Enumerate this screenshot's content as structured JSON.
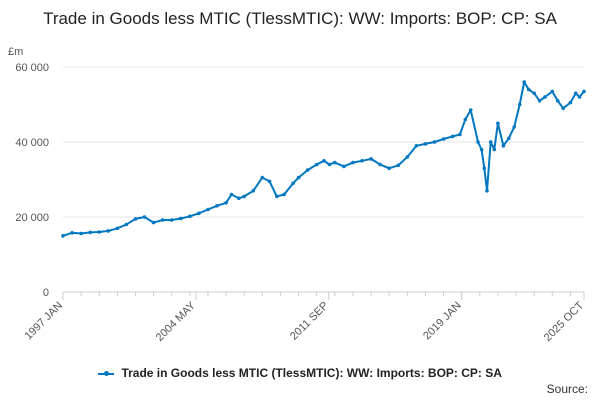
{
  "unit_label": "£m",
  "source_label": "Source:",
  "colors": {
    "series": "#0077c1",
    "grid": "#e6e6e6",
    "axis": "#cccccc"
  },
  "chart_data": {
    "type": "line",
    "title": "Trade in Goods less MTIC (TlessMTIC): WW: Imports: BOP: CP: SA",
    "ylabel": "£m",
    "ylim": [
      0,
      60000
    ],
    "y_ticks": [
      {
        "value": 0,
        "label": "0"
      },
      {
        "value": 20000,
        "label": "20 000"
      },
      {
        "value": 40000,
        "label": "40 000"
      },
      {
        "value": 60000,
        "label": "60 000"
      }
    ],
    "xlim": [
      1997.0,
      2025.75
    ],
    "x_ticks": [
      {
        "value": 1997.0,
        "label": "1997 JAN"
      },
      {
        "value": 2004.333,
        "label": "2004 MAY"
      },
      {
        "value": 2011.667,
        "label": "2011 SEP"
      },
      {
        "value": 2019.0,
        "label": "2019 JAN"
      },
      {
        "value": 2025.75,
        "label": "2025 OCT"
      }
    ],
    "series": [
      {
        "name": "Trade in Goods less MTIC (TlessMTIC): WW: Imports: BOP: CP: SA",
        "x": [
          1997.0,
          1997.5,
          1998.0,
          1998.5,
          1999.0,
          1999.5,
          2000.0,
          2000.5,
          2001.0,
          2001.5,
          2002.0,
          2002.5,
          2003.0,
          2003.5,
          2004.0,
          2004.5,
          2005.0,
          2005.5,
          2006.0,
          2006.3,
          2006.7,
          2007.0,
          2007.5,
          2008.0,
          2008.4,
          2008.8,
          2009.2,
          2009.7,
          2010.0,
          2010.5,
          2011.0,
          2011.4,
          2011.7,
          2012.0,
          2012.5,
          2013.0,
          2013.5,
          2014.0,
          2014.5,
          2015.0,
          2015.5,
          2016.0,
          2016.5,
          2017.0,
          2017.5,
          2018.0,
          2018.5,
          2018.9,
          2019.2,
          2019.5,
          2019.9,
          2020.1,
          2020.25,
          2020.4,
          2020.6,
          2020.8,
          2021.0,
          2021.3,
          2021.6,
          2021.9,
          2022.2,
          2022.45,
          2022.7,
          2023.0,
          2023.3,
          2023.6,
          2024.0,
          2024.3,
          2024.6,
          2025.0,
          2025.3,
          2025.5,
          2025.75
        ],
        "values": [
          15000,
          15800,
          15600,
          15900,
          16000,
          16300,
          17000,
          18000,
          19500,
          20000,
          18500,
          19200,
          19200,
          19600,
          20200,
          21000,
          22000,
          23000,
          23800,
          26000,
          25000,
          25500,
          27000,
          30500,
          29500,
          25500,
          26000,
          29000,
          30500,
          32500,
          34000,
          35000,
          34000,
          34500,
          33500,
          34500,
          35000,
          35500,
          34000,
          33000,
          33800,
          36000,
          39000,
          39500,
          40000,
          40800,
          41500,
          42000,
          46000,
          48500,
          40000,
          38000,
          33000,
          27000,
          40000,
          38000,
          45000,
          39000,
          41000,
          44000,
          50000,
          56000,
          54000,
          53000,
          51000,
          52000,
          53500,
          51000,
          49000,
          50500,
          53000,
          52000,
          53500
        ]
      }
    ]
  }
}
